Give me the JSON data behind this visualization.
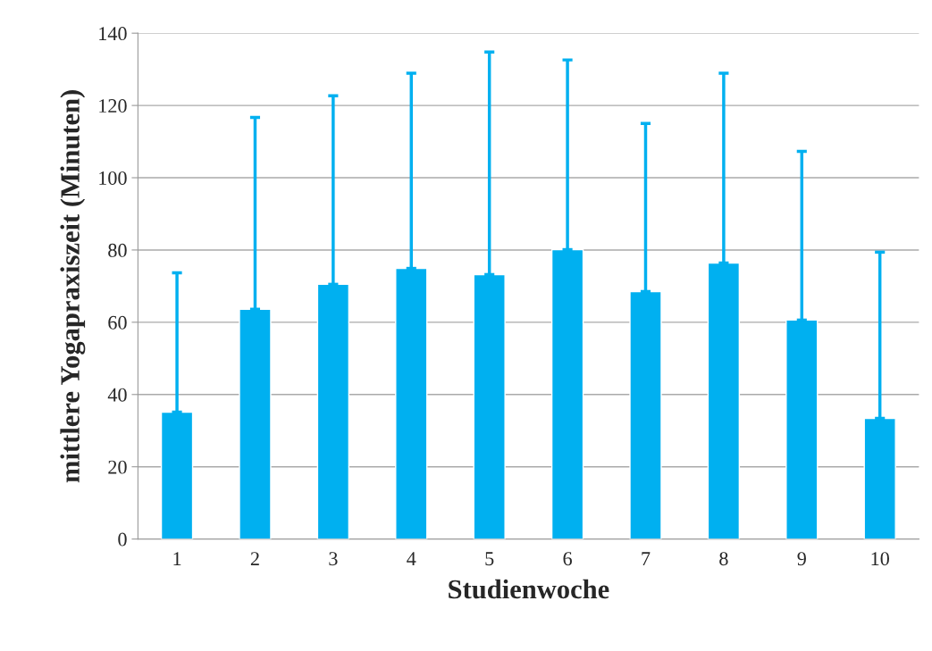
{
  "chart_data": {
    "type": "bar",
    "xlabel": "Studienwoche",
    "ylabel": "mittlere Yogapraxiszeit (Minuten)",
    "categories": [
      "1",
      "2",
      "3",
      "4",
      "5",
      "6",
      "7",
      "8",
      "9",
      "10"
    ],
    "values": [
      35.1,
      63.6,
      70.5,
      74.9,
      73.2,
      80.1,
      68.5,
      76.4,
      60.6,
      33.4
    ],
    "errors": [
      [
        35.1,
        73.7
      ],
      [
        63.6,
        116.7
      ],
      [
        70.5,
        122.7
      ],
      [
        74.9,
        128.9
      ],
      [
        73.2,
        134.8
      ],
      [
        80.1,
        132.6
      ],
      [
        68.5,
        115.0
      ],
      [
        76.4,
        128.9
      ],
      [
        60.6,
        107.3
      ],
      [
        33.4,
        79.4
      ]
    ],
    "color": "#00b0f0",
    "ylim": [
      0,
      140
    ],
    "yticks": [
      0,
      20,
      40,
      60,
      80,
      100,
      120,
      140
    ],
    "grid": "y"
  }
}
